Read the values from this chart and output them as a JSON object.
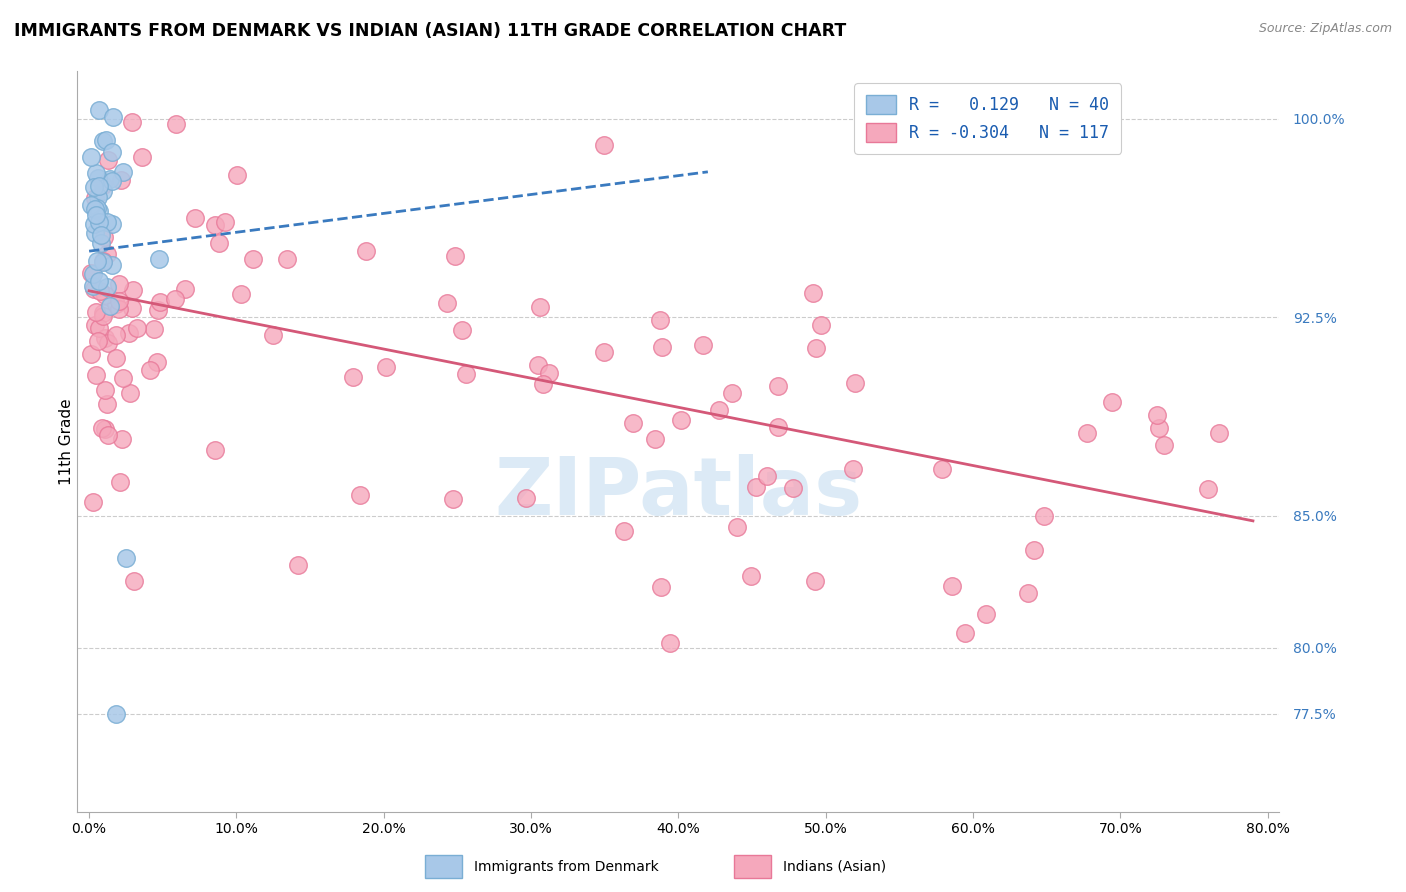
{
  "title": "IMMIGRANTS FROM DENMARK VS INDIAN (ASIAN) 11TH GRADE CORRELATION CHART",
  "source": "Source: ZipAtlas.com",
  "ylabel": "11th Grade",
  "denmark_color": "#a8c8e8",
  "indian_color": "#f5a8bc",
  "denmark_edge": "#7aaed4",
  "indian_edge": "#e87898",
  "trend_denmark_color": "#3a7abf",
  "trend_indian_color": "#d45878",
  "watermark": "ZIPatlas",
  "xlim": [
    0.0,
    0.8
  ],
  "ylim": [
    0.738,
    1.018
  ],
  "yticks": [
    0.775,
    0.8,
    0.85,
    0.925,
    1.0
  ],
  "ytick_labels": [
    "77.5%",
    "80.0%",
    "85.0%",
    "92.5%",
    "100.0%"
  ],
  "xticks": [
    0.0,
    0.1,
    0.2,
    0.3,
    0.4,
    0.5,
    0.6,
    0.7,
    0.8
  ],
  "xtick_labels": [
    "0.0%",
    "10.0%",
    "20.0%",
    "30.0%",
    "40.0%",
    "50.0%",
    "60.0%",
    "70.0%",
    "80.0%"
  ],
  "legend_label1": "R =   0.129   N = 40",
  "legend_label2": "R = -0.304   N = 117",
  "dk_trend_x": [
    0.0,
    0.42
  ],
  "dk_trend_y": [
    0.95,
    0.98
  ],
  "ind_trend_x": [
    0.0,
    0.79
  ],
  "ind_trend_y": [
    0.935,
    0.848
  ]
}
